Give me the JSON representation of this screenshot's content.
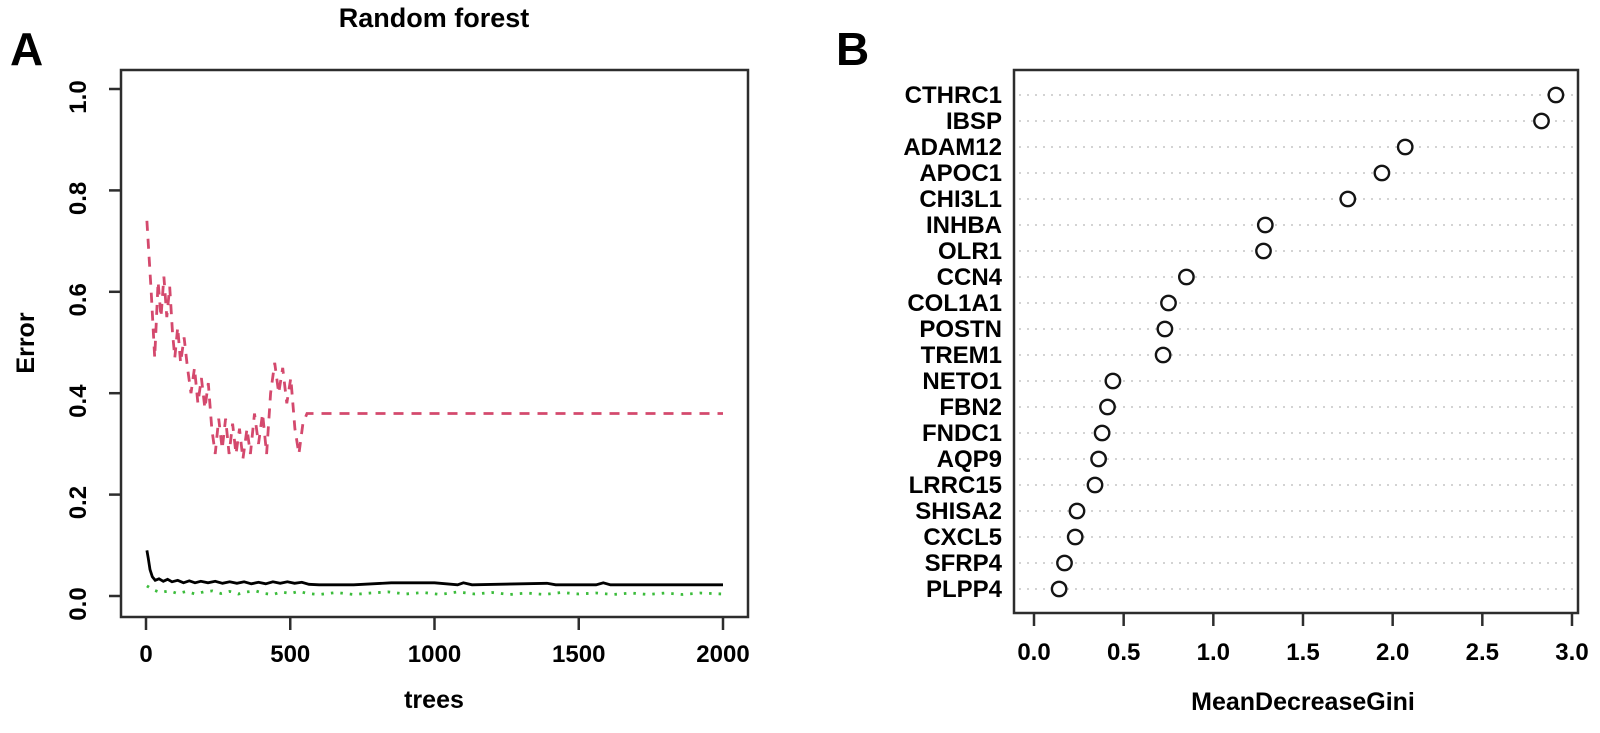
{
  "figure": {
    "panel_a": {
      "panel_label": "A",
      "title": "Random forest",
      "xlabel": "trees",
      "ylabel": "Error"
    },
    "panel_b": {
      "panel_label": "B",
      "xlabel": "MeanDecreaseGini"
    },
    "colors": {
      "red_dashed": "#d4496d",
      "green_dotted": "#3bbc3b",
      "black_solid": "#000000",
      "grid_dots": "#cdcdcd",
      "box_stroke": "#2d2d2d",
      "point_stroke": "#141414"
    }
  },
  "chart_data": [
    {
      "type": "line",
      "panel": "A",
      "title": "Random forest",
      "xlabel": "trees",
      "ylabel": "Error",
      "xlim": [
        0,
        2000
      ],
      "ylim": [
        0,
        1
      ],
      "xticks": [
        0,
        500,
        1000,
        1500,
        2000
      ],
      "yticks": [
        0.0,
        0.2,
        0.4,
        0.6,
        0.8,
        1.0
      ],
      "grid": false,
      "legend": "none",
      "series": [
        {
          "name": "red-dashed-error-line",
          "color": "#d4496d",
          "style": "dashed",
          "points": [
            [
              3,
              0.74
            ],
            [
              18,
              0.6
            ],
            [
              30,
              0.47
            ],
            [
              42,
              0.62
            ],
            [
              52,
              0.55
            ],
            [
              62,
              0.63
            ],
            [
              72,
              0.55
            ],
            [
              82,
              0.61
            ],
            [
              92,
              0.52
            ],
            [
              100,
              0.47
            ],
            [
              110,
              0.53
            ],
            [
              120,
              0.46
            ],
            [
              132,
              0.51
            ],
            [
              144,
              0.45
            ],
            [
              156,
              0.4
            ],
            [
              168,
              0.45
            ],
            [
              180,
              0.38
            ],
            [
              192,
              0.43
            ],
            [
              204,
              0.37
            ],
            [
              216,
              0.42
            ],
            [
              228,
              0.33
            ],
            [
              240,
              0.28
            ],
            [
              252,
              0.35
            ],
            [
              264,
              0.29
            ],
            [
              276,
              0.35
            ],
            [
              288,
              0.28
            ],
            [
              300,
              0.34
            ],
            [
              312,
              0.28
            ],
            [
              324,
              0.33
            ],
            [
              336,
              0.27
            ],
            [
              350,
              0.33
            ],
            [
              362,
              0.28
            ],
            [
              376,
              0.36
            ],
            [
              390,
              0.3
            ],
            [
              404,
              0.36
            ],
            [
              418,
              0.28
            ],
            [
              432,
              0.4
            ],
            [
              446,
              0.46
            ],
            [
              460,
              0.4
            ],
            [
              474,
              0.45
            ],
            [
              488,
              0.38
            ],
            [
              502,
              0.43
            ],
            [
              516,
              0.33
            ],
            [
              530,
              0.28
            ],
            [
              544,
              0.34
            ],
            [
              558,
              0.36
            ],
            [
              700,
              0.36
            ],
            [
              1000,
              0.36
            ],
            [
              1500,
              0.36
            ],
            [
              2000,
              0.36
            ]
          ]
        },
        {
          "name": "black-solid-error-line",
          "color": "#000000",
          "style": "solid",
          "points": [
            [
              3,
              0.09
            ],
            [
              8,
              0.074
            ],
            [
              14,
              0.052
            ],
            [
              22,
              0.038
            ],
            [
              32,
              0.031
            ],
            [
              45,
              0.034
            ],
            [
              60,
              0.029
            ],
            [
              75,
              0.033
            ],
            [
              90,
              0.028
            ],
            [
              110,
              0.031
            ],
            [
              130,
              0.026
            ],
            [
              150,
              0.03
            ],
            [
              170,
              0.026
            ],
            [
              190,
              0.029
            ],
            [
              215,
              0.026
            ],
            [
              240,
              0.029
            ],
            [
              265,
              0.025
            ],
            [
              290,
              0.028
            ],
            [
              315,
              0.025
            ],
            [
              340,
              0.028
            ],
            [
              365,
              0.024
            ],
            [
              390,
              0.027
            ],
            [
              415,
              0.024
            ],
            [
              440,
              0.028
            ],
            [
              465,
              0.025
            ],
            [
              490,
              0.028
            ],
            [
              515,
              0.025
            ],
            [
              540,
              0.027
            ],
            [
              565,
              0.023
            ],
            [
              600,
              0.022
            ],
            [
              720,
              0.022
            ],
            [
              850,
              0.026
            ],
            [
              1000,
              0.026
            ],
            [
              1080,
              0.022
            ],
            [
              1100,
              0.026
            ],
            [
              1130,
              0.022
            ],
            [
              1390,
              0.025
            ],
            [
              1420,
              0.022
            ],
            [
              1560,
              0.022
            ],
            [
              1585,
              0.026
            ],
            [
              1610,
              0.022
            ],
            [
              2000,
              0.022
            ]
          ]
        },
        {
          "name": "green-dotted-error-line",
          "color": "#3bbc3b",
          "style": "dotted",
          "points": [
            [
              3,
              0.02
            ],
            [
              25,
              0.012
            ],
            [
              50,
              0.007
            ],
            [
              80,
              0.01
            ],
            [
              110,
              0.005
            ],
            [
              140,
              0.009
            ],
            [
              170,
              0.004
            ],
            [
              200,
              0.008
            ],
            [
              230,
              0.01
            ],
            [
              260,
              0.005
            ],
            [
              290,
              0.009
            ],
            [
              320,
              0.004
            ],
            [
              350,
              0.008
            ],
            [
              380,
              0.01
            ],
            [
              410,
              0.005
            ],
            [
              440,
              0.003
            ],
            [
              470,
              0.008
            ],
            [
              500,
              0.005
            ],
            [
              530,
              0.009
            ],
            [
              560,
              0.005
            ],
            [
              600,
              0.003
            ],
            [
              660,
              0.007
            ],
            [
              720,
              0.003
            ],
            [
              780,
              0.006
            ],
            [
              840,
              0.008
            ],
            [
              900,
              0.004
            ],
            [
              960,
              0.007
            ],
            [
              1020,
              0.003
            ],
            [
              1080,
              0.008
            ],
            [
              1140,
              0.004
            ],
            [
              1200,
              0.007
            ],
            [
              1260,
              0.003
            ],
            [
              1320,
              0.006
            ],
            [
              1380,
              0.003
            ],
            [
              1440,
              0.007
            ],
            [
              1500,
              0.004
            ],
            [
              1560,
              0.006
            ],
            [
              1620,
              0.003
            ],
            [
              1680,
              0.006
            ],
            [
              1740,
              0.003
            ],
            [
              1800,
              0.006
            ],
            [
              1860,
              0.003
            ],
            [
              1920,
              0.006
            ],
            [
              2000,
              0.004
            ]
          ]
        }
      ]
    },
    {
      "type": "scatter",
      "panel": "B",
      "xlabel": "MeanDecreaseGini",
      "xlim": [
        0,
        3
      ],
      "xticks": [
        0.0,
        0.5,
        1.0,
        1.5,
        2.0,
        2.5,
        3.0
      ],
      "grid": "dotted-horizontal",
      "legend": "none",
      "categories": [
        "CTHRC1",
        "IBSP",
        "ADAM12",
        "APOC1",
        "CHI3L1",
        "INHBA",
        "OLR1",
        "CCN4",
        "COL1A1",
        "POSTN",
        "TREM1",
        "NETO1",
        "FBN2",
        "FNDC1",
        "AQP9",
        "LRRC15",
        "SHISA2",
        "CXCL5",
        "SFRP4",
        "PLPP4"
      ],
      "values": [
        2.91,
        2.83,
        2.07,
        1.94,
        1.75,
        1.29,
        1.28,
        0.85,
        0.75,
        0.73,
        0.72,
        0.44,
        0.41,
        0.38,
        0.36,
        0.34,
        0.24,
        0.23,
        0.17,
        0.14
      ]
    }
  ]
}
